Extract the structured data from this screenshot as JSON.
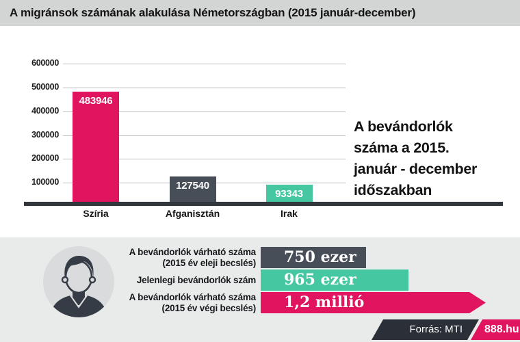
{
  "colors": {
    "pink": "#e0145f",
    "teal": "#45c8a2",
    "slate": "#484e58",
    "badge_dark": "#2b3038",
    "baseline": "#31353c",
    "header_bg": "#d3d4d4",
    "panel_bg": "#e9eaea",
    "gridline": "#bdbdbd",
    "text": "#141414"
  },
  "header": {
    "title": "A migránsok számának alakulása Németországban (2015 január-december)"
  },
  "chart_data": [
    {
      "type": "bar",
      "title": "A migránsok számának alakulása Németországban (2015 január-december)",
      "categories": [
        "Szíria",
        "Afganisztán",
        "Irak"
      ],
      "values": [
        483946,
        127540,
        93343
      ],
      "value_labels": [
        "483946",
        "127540",
        "93343"
      ],
      "bar_colors": [
        "#e0145f",
        "#484e58",
        "#45c8a2"
      ],
      "xlabel": "",
      "ylabel": "",
      "ylim": [
        0,
        600000
      ],
      "y_ticks": [
        600000,
        500000,
        400000,
        300000,
        200000,
        100000
      ],
      "grid": "horizontal",
      "legend": "none"
    },
    {
      "type": "bar",
      "orientation": "horizontal",
      "categories": [
        "A bevándorlók várható száma (2015 év eleji becslés)",
        "Jelenlegi bevándorlók szám",
        "A bevándorlók várható száma (2015 év végi becslés)"
      ],
      "values": [
        750000,
        965000,
        1200000
      ],
      "value_labels": [
        "750 ezer",
        "965 ezer",
        "1,2 millió"
      ],
      "bar_colors": [
        "#484e58",
        "#45c8a2",
        "#e0145f"
      ]
    }
  ],
  "annotation": {
    "text": "A bevándorlók száma a 2015. január - december időszakban",
    "lines": [
      "A bevándorlók",
      "száma a 2015.",
      "január - december",
      "időszakban"
    ]
  },
  "summary": {
    "rows": [
      {
        "label_lines": [
          "A bevándorlók várható száma",
          "(2015 év eleji becslés)"
        ],
        "value": "750 ezer",
        "color": "#484e58",
        "arrow": false
      },
      {
        "label_lines": [
          "Jelenlegi bevándorlók szám"
        ],
        "value": "965 ezer",
        "color": "#45c8a2",
        "arrow": false
      },
      {
        "label_lines": [
          "A bevándorlók várható száma",
          "(2015 év végi becslés)"
        ],
        "value": "1,2 millió",
        "color": "#e0145f",
        "arrow": true
      }
    ]
  },
  "footer": {
    "source": "Forrás: MTI",
    "brand": "888.hu"
  }
}
